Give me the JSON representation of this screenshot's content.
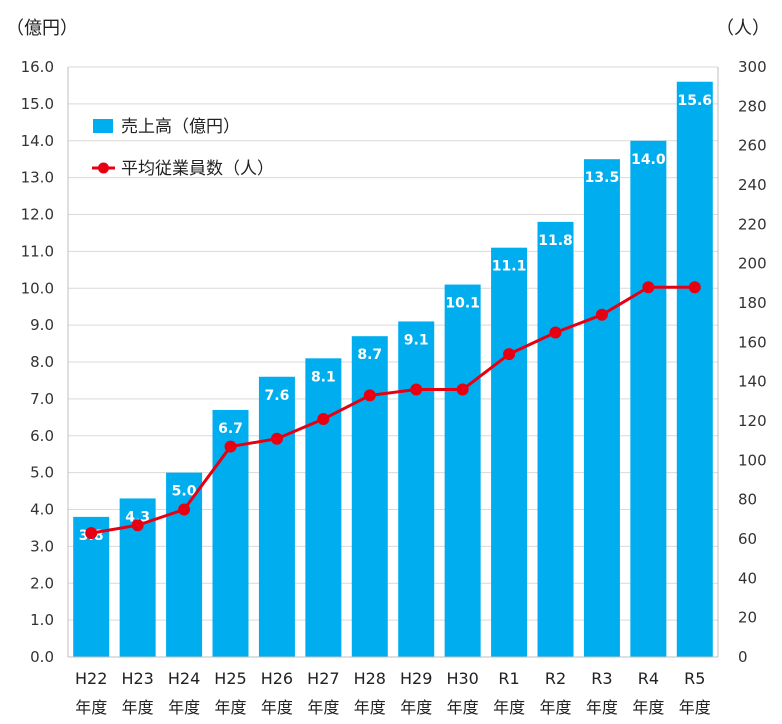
{
  "chart_data": {
    "type": "bar",
    "categories": [
      [
        "H22",
        "年度"
      ],
      [
        "H23",
        "年度"
      ],
      [
        "H24",
        "年度"
      ],
      [
        "H25",
        "年度"
      ],
      [
        "H26",
        "年度"
      ],
      [
        "H27",
        "年度"
      ],
      [
        "H28",
        "年度"
      ],
      [
        "H29",
        "年度"
      ],
      [
        "H30",
        "年度"
      ],
      [
        "R1",
        "年度"
      ],
      [
        "R2",
        "年度"
      ],
      [
        "R3",
        "年度"
      ],
      [
        "R4",
        "年度"
      ],
      [
        "R5",
        "年度"
      ]
    ],
    "y_left": {
      "unit_label": "（億円）",
      "min": 0,
      "max": 16,
      "step": 1,
      "tick_labels": [
        "0.0",
        "1.0",
        "2.0",
        "3.0",
        "4.0",
        "5.0",
        "6.0",
        "7.0",
        "8.0",
        "9.0",
        "10.0",
        "11.0",
        "12.0",
        "13.0",
        "14.0",
        "15.0",
        "16.0"
      ]
    },
    "y_right": {
      "unit_label": "（人）",
      "min": 0,
      "max": 300,
      "step": 20,
      "tick_labels": [
        "0",
        "20",
        "40",
        "60",
        "80",
        "100",
        "120",
        "140",
        "160",
        "180",
        "200",
        "220",
        "240",
        "260",
        "280",
        "300"
      ]
    },
    "series": [
      {
        "name": "売上高（億円）",
        "type": "bar",
        "axis": "left",
        "color": "#00aeef",
        "values": [
          3.8,
          4.3,
          5.0,
          6.7,
          7.6,
          8.1,
          8.7,
          9.1,
          10.1,
          11.1,
          11.8,
          13.5,
          14.0,
          15.6
        ],
        "data_labels": [
          "3.8",
          "4.3",
          "5.0",
          "6.7",
          "7.6",
          "8.1",
          "8.7",
          "9.1",
          "10.1",
          "11.1",
          "11.8",
          "13.5",
          "14.0",
          "15.6"
        ]
      },
      {
        "name": "平均従業員数（人）",
        "type": "line",
        "axis": "right",
        "color": "#e60012",
        "values": [
          63,
          67,
          75,
          107,
          111,
          121,
          133,
          136,
          136,
          154,
          165,
          174,
          188,
          188
        ]
      }
    ],
    "grid": true,
    "legend": "top-left"
  }
}
